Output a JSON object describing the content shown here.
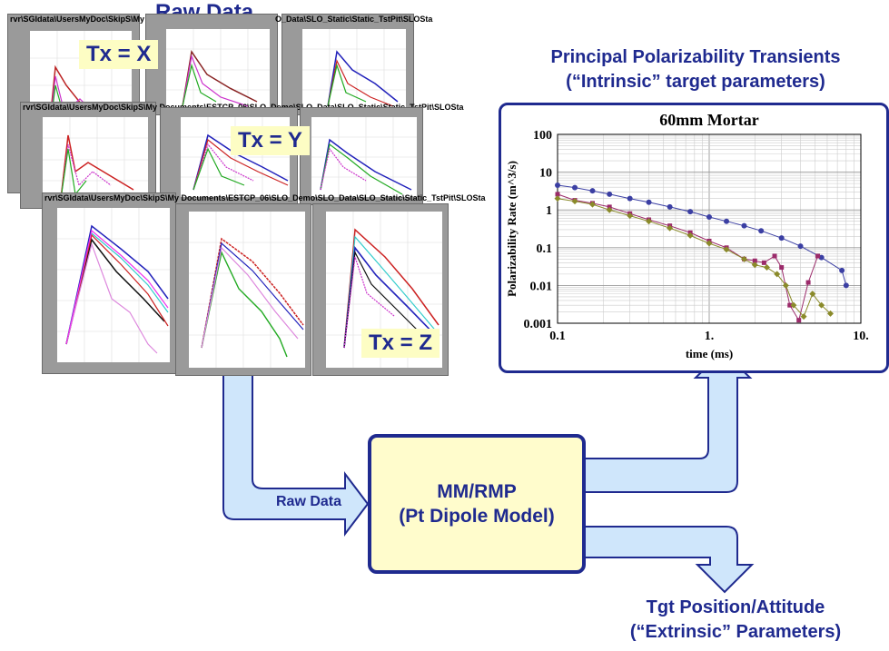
{
  "raw_data_title": "Raw Data",
  "principal_title_line1": "Principal Polarizability Transients",
  "principal_title_line2": "(“Intrinsic” target parameters)",
  "model_box": {
    "line1": "MM/RMP",
    "line2": "(Pt Dipole Model)"
  },
  "arrow_label": "Raw Data",
  "output_label_line1": "Tgt Position/Attitude",
  "output_label_line2": "(“Extrinsic” Parameters)",
  "tx_labels": {
    "x": "Tx = X",
    "y": "Tx = Y",
    "z": "Tx = Z"
  },
  "panel_titles": {
    "row1_a": "rvr\\SGIdata\\UsersMyDoc\\SkipS\\My",
    "row1_c": "O_Data\\SLO_Static\\Static_TstPit\\SLOSta",
    "row2": "rvr\\SGIdata\\UsersMyDoc\\SkipS\\My Documents\\ESTCP_06\\SLO_Demo\\SLO_Data\\SLO_Static\\Static_TstPit\\SLOSta",
    "row3": "rvr\\SGIdata\\UsersMyDoc\\SkipS\\My Documents\\ESTCP_06\\SLO_Demo\\SLO_Data\\SLO_Static\\Static_TstPit\\SLOSta"
  },
  "colors": {
    "title_blue": "#1f2a8f",
    "box_fill": "#fffccc",
    "arrow_fill": "#cfe6fb",
    "arrow_stroke": "#1f2a8f",
    "panel_gray": "#9a9a9a",
    "label_fill": "#fdfdc4"
  },
  "chart_data": {
    "type": "scatter",
    "title": "60mm Mortar",
    "xlabel": "time (ms)",
    "ylabel": "Polarizability Rate (m^3/s)",
    "x_scale": "log",
    "y_scale": "log",
    "xlim": [
      0.1,
      10
    ],
    "ylim": [
      0.001,
      100
    ],
    "x_ticks": [
      "0.1",
      "1.",
      "10."
    ],
    "y_ticks": [
      "100",
      "10",
      "1",
      "0.1",
      "0.01",
      "0.001"
    ],
    "grid": true,
    "series": [
      {
        "color": "#3b3fa3",
        "x": [
          0.1,
          0.13,
          0.17,
          0.22,
          0.3,
          0.4,
          0.55,
          0.75,
          1.0,
          1.3,
          1.7,
          2.2,
          3.0,
          4.0,
          5.5,
          7.5,
          8.0
        ],
        "y": [
          4.5,
          3.9,
          3.2,
          2.6,
          2.0,
          1.6,
          1.2,
          0.9,
          0.65,
          0.5,
          0.38,
          0.28,
          0.18,
          0.11,
          0.055,
          0.025,
          0.01
        ]
      },
      {
        "color": "#9b2a6a",
        "x": [
          0.1,
          0.13,
          0.17,
          0.22,
          0.3,
          0.4,
          0.55,
          0.75,
          1.0,
          1.3,
          1.7,
          2.0,
          2.3,
          2.7,
          3.0,
          3.4,
          3.9,
          4.5,
          5.2
        ],
        "y": [
          2.6,
          1.8,
          1.5,
          1.2,
          0.8,
          0.55,
          0.38,
          0.25,
          0.15,
          0.1,
          0.05,
          0.045,
          0.04,
          0.06,
          0.03,
          0.003,
          0.0012,
          0.012,
          0.06
        ]
      },
      {
        "color": "#8a8a2a",
        "x": [
          0.1,
          0.13,
          0.17,
          0.22,
          0.3,
          0.4,
          0.55,
          0.75,
          1.0,
          1.3,
          1.7,
          2.0,
          2.4,
          2.8,
          3.2,
          3.6,
          4.2,
          4.8,
          5.5,
          6.3
        ],
        "y": [
          2.0,
          1.7,
          1.4,
          1.0,
          0.7,
          0.5,
          0.33,
          0.21,
          0.13,
          0.09,
          0.05,
          0.035,
          0.03,
          0.02,
          0.01,
          0.003,
          0.0015,
          0.006,
          0.003,
          0.0018
        ]
      }
    ]
  }
}
